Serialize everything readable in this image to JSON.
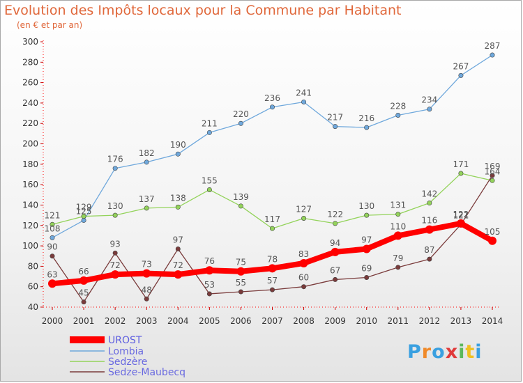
{
  "title": "Evolution des Impôts locaux pour la Commune par Habitant",
  "subtitle": "(en € et par an)",
  "logo": {
    "text": "Proxiti",
    "colors": [
      "#3aa0e0",
      "#f08a2a",
      "#3aa0e0",
      "#e03a3a",
      "#5cb85c",
      "#f0c020",
      "#3aa0e0"
    ]
  },
  "chart_data": {
    "type": "line",
    "x": [
      2000,
      2001,
      2002,
      2003,
      2004,
      2005,
      2006,
      2007,
      2008,
      2009,
      2010,
      2011,
      2012,
      2013,
      2014
    ],
    "ylim": [
      40,
      300
    ],
    "yticks": [
      40,
      60,
      80,
      100,
      120,
      140,
      160,
      180,
      200,
      220,
      240,
      260,
      280,
      300
    ],
    "grid": false,
    "legend_position": "bottom-left",
    "series": [
      {
        "name": "UROST",
        "color": "#ff0000",
        "values": [
          63,
          66,
          72,
          73,
          72,
          76,
          75,
          78,
          83,
          94,
          97,
          110,
          116,
          122,
          105
        ]
      },
      {
        "name": "Lombia",
        "color": "#6fa8dc",
        "values": [
          108,
          125,
          176,
          182,
          190,
          211,
          220,
          236,
          241,
          217,
          216,
          228,
          234,
          267,
          287
        ]
      },
      {
        "name": "Sedzère",
        "color": "#93d35a",
        "values": [
          121,
          129,
          130,
          137,
          138,
          155,
          139,
          117,
          127,
          122,
          130,
          131,
          142,
          171,
          164
        ]
      },
      {
        "name": "Sedze-Maubecq",
        "color": "#7a3b3b",
        "values": [
          90,
          45,
          93,
          48,
          97,
          53,
          55,
          57,
          60,
          67,
          69,
          79,
          87,
          121,
          169
        ]
      }
    ]
  }
}
